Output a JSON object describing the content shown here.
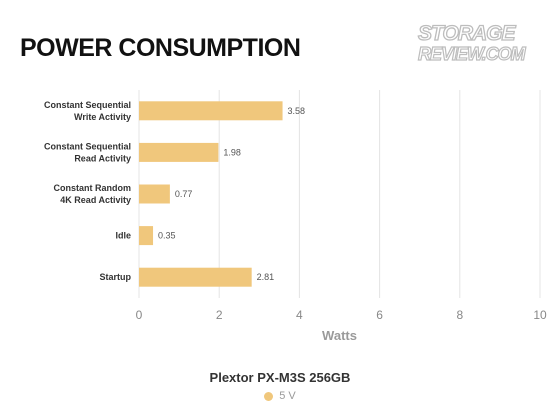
{
  "header": {
    "title": "POWER CONSUMPTION",
    "logo_line1": "STORAGE",
    "logo_line2": "REVIEW.COM"
  },
  "colors": {
    "bar": "#f0c77c",
    "grid": "#e4e4e4",
    "axis_text": "#888888",
    "label_text": "#333333"
  },
  "chart_data": {
    "type": "bar",
    "orientation": "horizontal",
    "categories": [
      [
        "Constant Sequential",
        "Write Activity"
      ],
      [
        "Constant Sequential",
        "Read Activity"
      ],
      [
        "Constant Random",
        "4K Read Activity"
      ],
      [
        "Idle"
      ],
      [
        "Startup"
      ]
    ],
    "series": [
      {
        "name": "5 V",
        "values": [
          3.58,
          1.98,
          0.77,
          0.35,
          2.81
        ]
      }
    ],
    "data_labels": [
      "3.58",
      "1.98",
      "0.77",
      "0.35",
      "2.81"
    ],
    "xlabel": "Watts",
    "xlim": [
      0,
      10
    ],
    "xticks": [
      0,
      2,
      4,
      6,
      8,
      10
    ],
    "grid": true,
    "legend_title": "Plextor PX-M3S 256GB",
    "legend_position": "bottom"
  }
}
